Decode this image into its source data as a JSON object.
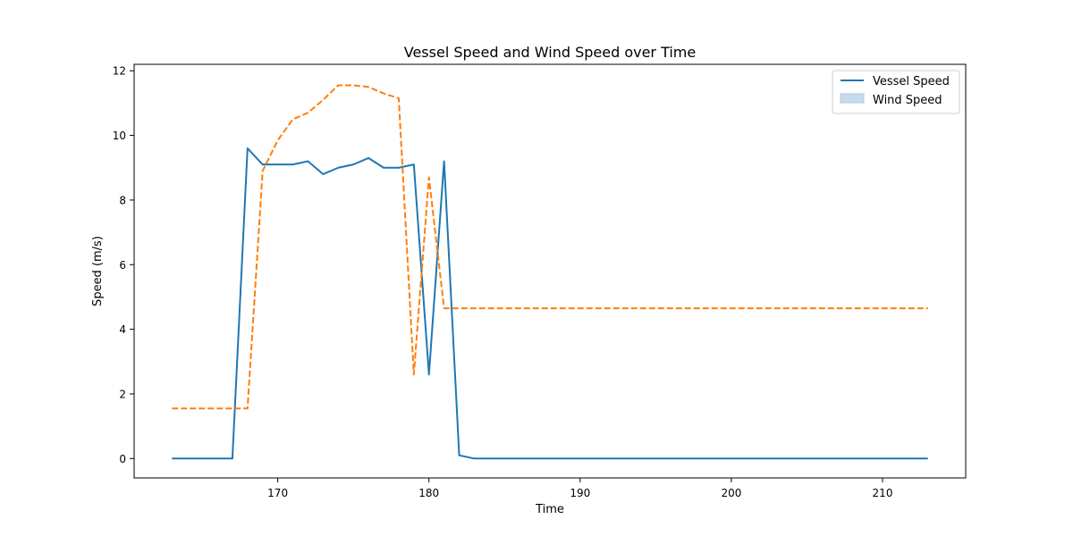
{
  "chart_data": {
    "type": "line",
    "title": "Vessel Speed and Wind Speed over Time",
    "xlabel": "Time",
    "ylabel": "Speed (m/s)",
    "xlim": [
      160.5,
      215.5
    ],
    "ylim": [
      -0.6,
      12.2
    ],
    "xticks": [
      170,
      180,
      190,
      200,
      210
    ],
    "yticks": [
      0,
      2,
      4,
      6,
      8,
      10,
      12
    ],
    "grid": false,
    "legend_position": "top-right",
    "legend": [
      {
        "label": "Vessel Speed",
        "marker": "line",
        "color": "#1f77b4"
      },
      {
        "label": "Wind Speed",
        "marker": "patch",
        "color": "#c6dcec"
      }
    ],
    "series": [
      {
        "name": "Vessel Speed",
        "color": "#1f77b4",
        "style": "solid",
        "x": [
          163,
          164,
          165,
          166,
          167,
          168,
          169,
          170,
          171,
          172,
          173,
          174,
          175,
          176,
          177,
          178,
          179,
          180,
          181,
          182,
          183,
          184,
          185,
          186,
          187,
          188,
          189,
          190,
          191,
          192,
          193,
          194,
          195,
          196,
          197,
          198,
          199,
          200,
          201,
          202,
          203,
          204,
          205,
          206,
          207,
          208,
          209,
          210,
          211,
          212,
          213
        ],
        "y": [
          0,
          0,
          0,
          0,
          0,
          9.6,
          9.1,
          9.1,
          9.1,
          9.2,
          8.8,
          9.0,
          9.1,
          9.3,
          9.0,
          9.0,
          9.1,
          2.6,
          9.2,
          0.1,
          0,
          0,
          0,
          0,
          0,
          0,
          0,
          0,
          0,
          0,
          0,
          0,
          0,
          0,
          0,
          0,
          0,
          0,
          0,
          0,
          0,
          0,
          0,
          0,
          0,
          0,
          0,
          0,
          0,
          0,
          0
        ]
      },
      {
        "name": "Wind Speed",
        "color": "#ff7f0e",
        "style": "dashed",
        "x": [
          163,
          164,
          165,
          166,
          167,
          168,
          169,
          170,
          171,
          172,
          173,
          174,
          175,
          176,
          177,
          178,
          179,
          180,
          181,
          182,
          183,
          184,
          185,
          186,
          187,
          188,
          189,
          190,
          191,
          192,
          193,
          194,
          195,
          196,
          197,
          198,
          199,
          200,
          201,
          202,
          203,
          204,
          205,
          206,
          207,
          208,
          209,
          210,
          211,
          212,
          213
        ],
        "y": [
          1.55,
          1.55,
          1.55,
          1.55,
          1.55,
          1.55,
          8.9,
          9.85,
          10.5,
          10.7,
          11.1,
          11.55,
          11.55,
          11.5,
          11.3,
          11.15,
          2.6,
          8.7,
          4.65,
          4.65,
          4.65,
          4.65,
          4.65,
          4.65,
          4.65,
          4.65,
          4.65,
          4.65,
          4.65,
          4.65,
          4.65,
          4.65,
          4.65,
          4.65,
          4.65,
          4.65,
          4.65,
          4.65,
          4.65,
          4.65,
          4.65,
          4.65,
          4.65,
          4.65,
          4.65,
          4.65,
          4.65,
          4.65,
          4.65,
          4.65,
          4.65
        ]
      }
    ]
  }
}
